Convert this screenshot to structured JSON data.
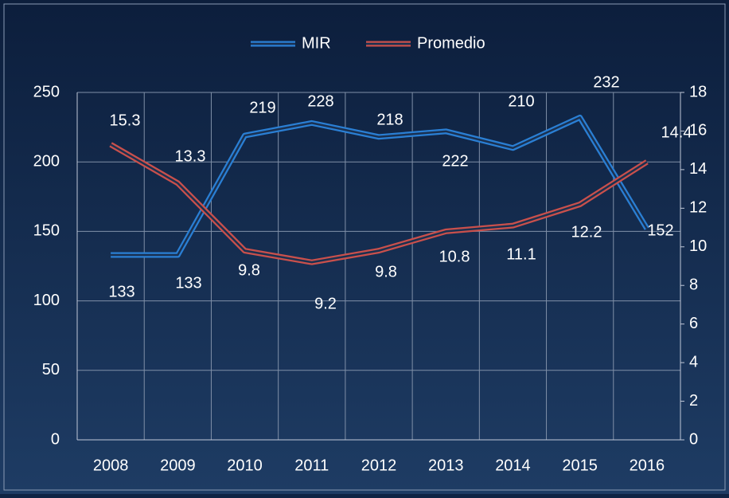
{
  "chart_data": {
    "type": "line",
    "categories": [
      "2008",
      "2009",
      "2010",
      "2011",
      "2012",
      "2013",
      "2014",
      "2015",
      "2016"
    ],
    "series": [
      {
        "name": "MIR",
        "color": "#2a7fd4",
        "values": [
          133,
          133,
          219,
          228,
          218,
          222,
          210,
          232,
          152
        ]
      },
      {
        "name": "Promedio",
        "color": "#c9504c",
        "axis": "y2",
        "values": [
          15.3,
          13.3,
          9.8,
          9.2,
          9.8,
          10.8,
          11.1,
          12.2,
          14.4
        ]
      }
    ],
    "ylim": [
      0,
      250
    ],
    "yticks": [
      0,
      50,
      100,
      150,
      200,
      250
    ],
    "y2lim": [
      0,
      18
    ],
    "y2ticks": [
      0,
      2,
      4,
      6,
      8,
      10,
      12,
      14,
      16,
      18
    ],
    "grid": true,
    "legend": "top"
  }
}
